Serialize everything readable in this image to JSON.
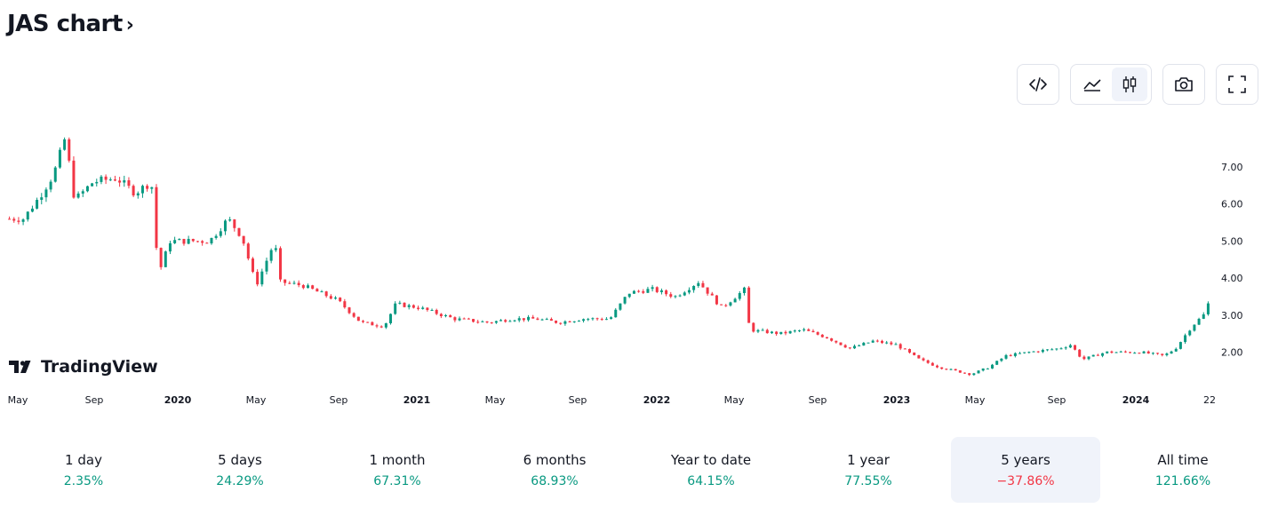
{
  "header": {
    "title": "JAS chart",
    "chevron": "›"
  },
  "toolbar": {
    "embed_icon": "code-icon",
    "area_icon": "area-chart-icon",
    "candle_icon": "candlestick-icon",
    "snapshot_icon": "camera-icon",
    "fullscreen_icon": "fullscreen-icon",
    "active_style": "candles"
  },
  "branding": {
    "name": "TradingView"
  },
  "colors": {
    "up": "#089981",
    "down": "#f23645",
    "text": "#131722",
    "active_bg": "#f0f3fa"
  },
  "chart_data": {
    "type": "candlestick",
    "ylim": [
      1.2,
      8.0
    ],
    "y_ticks": [
      "7.00",
      "6.00",
      "5.00",
      "4.00",
      "3.00",
      "2.00"
    ],
    "x_ticks": [
      "May",
      "Sep",
      "2020",
      "May",
      "Sep",
      "2021",
      "May",
      "Sep",
      "2022",
      "May",
      "Sep",
      "2023",
      "May",
      "Sep",
      "2024",
      "22"
    ],
    "x_ticks_bold": [
      "2020",
      "2021",
      "2022",
      "2023",
      "2024"
    ],
    "path": [
      [
        2019.33,
        5.6
      ],
      [
        2019.4,
        5.6
      ],
      [
        2019.47,
        6.2
      ],
      [
        2019.53,
        6.8
      ],
      [
        2019.58,
        7.8
      ],
      [
        2019.62,
        6.1
      ],
      [
        2019.7,
        6.6
      ],
      [
        2019.8,
        6.7
      ],
      [
        2019.88,
        6.3
      ],
      [
        2019.95,
        6.6
      ],
      [
        2019.98,
        4.1
      ],
      [
        2020.03,
        5.0
      ],
      [
        2020.12,
        5.0
      ],
      [
        2020.2,
        5.0
      ],
      [
        2020.28,
        5.6
      ],
      [
        2020.34,
        5.1
      ],
      [
        2020.4,
        3.8
      ],
      [
        2020.48,
        5.0
      ],
      [
        2020.5,
        3.9
      ],
      [
        2020.6,
        3.8
      ],
      [
        2020.75,
        3.4
      ],
      [
        2020.85,
        2.8
      ],
      [
        2020.95,
        2.7
      ],
      [
        2021.0,
        3.3
      ],
      [
        2021.1,
        3.2
      ],
      [
        2021.25,
        2.9
      ],
      [
        2021.4,
        2.8
      ],
      [
        2021.5,
        2.9
      ],
      [
        2021.6,
        2.9
      ],
      [
        2021.7,
        2.8
      ],
      [
        2021.8,
        2.9
      ],
      [
        2021.92,
        2.9
      ],
      [
        2022.0,
        3.6
      ],
      [
        2022.1,
        3.7
      ],
      [
        2022.2,
        3.5
      ],
      [
        2022.3,
        3.9
      ],
      [
        2022.4,
        3.2
      ],
      [
        2022.5,
        3.7
      ],
      [
        2022.52,
        2.6
      ],
      [
        2022.65,
        2.5
      ],
      [
        2022.75,
        2.6
      ],
      [
        2022.85,
        2.4
      ],
      [
        2022.95,
        2.1
      ],
      [
        2023.05,
        2.3
      ],
      [
        2023.15,
        2.2
      ],
      [
        2023.25,
        1.8
      ],
      [
        2023.33,
        1.6
      ],
      [
        2023.4,
        1.5
      ],
      [
        2023.47,
        1.4
      ],
      [
        2023.55,
        1.6
      ],
      [
        2023.62,
        1.9
      ],
      [
        2023.72,
        2.0
      ],
      [
        2023.85,
        2.1
      ],
      [
        2023.9,
        2.2
      ],
      [
        2023.95,
        1.8
      ],
      [
        2024.05,
        2.0
      ],
      [
        2024.2,
        2.0
      ],
      [
        2024.3,
        1.9
      ],
      [
        2024.35,
        2.1
      ],
      [
        2024.42,
        2.7
      ],
      [
        2024.47,
        3.0
      ],
      [
        2024.5,
        3.45
      ]
    ]
  },
  "periods": [
    {
      "label": "1 day",
      "value": "2.35%",
      "sign": "pos"
    },
    {
      "label": "5 days",
      "value": "24.29%",
      "sign": "pos"
    },
    {
      "label": "1 month",
      "value": "67.31%",
      "sign": "pos"
    },
    {
      "label": "6 months",
      "value": "68.93%",
      "sign": "pos"
    },
    {
      "label": "Year to date",
      "value": "64.15%",
      "sign": "pos"
    },
    {
      "label": "1 year",
      "value": "77.55%",
      "sign": "pos"
    },
    {
      "label": "5 years",
      "value": "−37.86%",
      "sign": "neg",
      "active": true
    },
    {
      "label": "All time",
      "value": "121.66%",
      "sign": "pos"
    }
  ]
}
